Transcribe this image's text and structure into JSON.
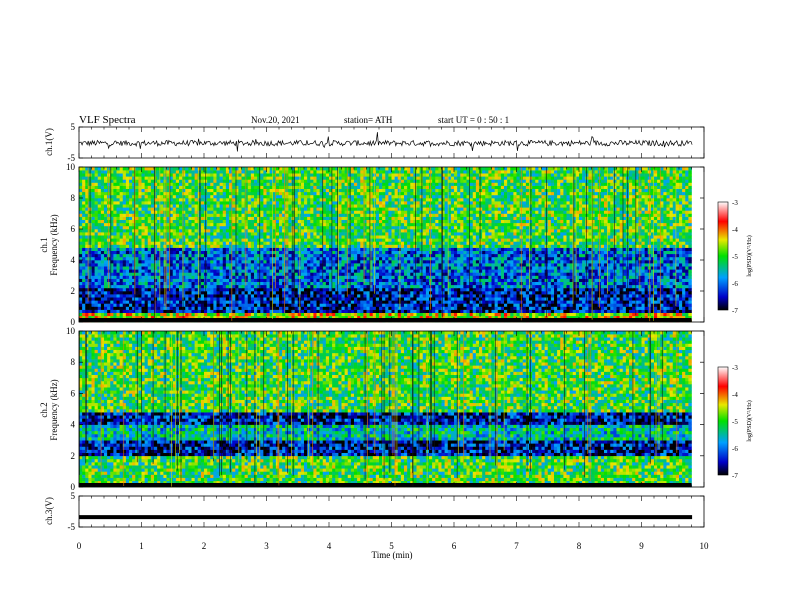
{
  "header": {
    "title": "VLF  Spectra",
    "date": "Nov.20, 2021",
    "station": "station= ATH",
    "start": "start  UT  =    0  : 50 : 1"
  },
  "colorbar": {
    "label": "log(PSD)(V²/Hz)",
    "ticks": [
      "-3",
      "-4",
      "-5",
      "-6",
      "-7"
    ]
  },
  "chart_data": [
    {
      "type": "line",
      "name": "waveform-ch1",
      "ylabel": "ch.1(V)",
      "ylim": [
        -5,
        5
      ],
      "yticks": [
        "5",
        "-5"
      ],
      "xlim": [
        0,
        10
      ],
      "approx_baseline_V": -0.2
    },
    {
      "type": "heatmap",
      "name": "spectrogram-ch1",
      "ylabel_top": "ch.1",
      "ylabel": "Frequency  (kHz)",
      "ylim": [
        0,
        10
      ],
      "yticks": [
        "0",
        "2",
        "4",
        "6",
        "8",
        "10"
      ],
      "xlim": [
        0,
        9.8
      ],
      "color_scale": "log(PSD)(V²/Hz)",
      "clim": [
        -7,
        -3
      ],
      "bands_kHz": [
        {
          "from": 0,
          "to": 0.6,
          "level": -4.5
        },
        {
          "from": 0.6,
          "to": 2.2,
          "level": -6.5
        },
        {
          "from": 2.2,
          "to": 4.8,
          "level": -6.0
        },
        {
          "from": 4.8,
          "to": 10,
          "level": -5.0
        }
      ]
    },
    {
      "type": "heatmap",
      "name": "spectrogram-ch2",
      "ylabel_top": "ch.2",
      "ylabel": "Frequency  (kHz)",
      "ylim": [
        0,
        10
      ],
      "yticks": [
        "0",
        "2",
        "4",
        "6",
        "8",
        "10"
      ],
      "xlim": [
        0,
        9.8
      ],
      "color_scale": "log(PSD)(V²/Hz)",
      "clim": [
        -7,
        -3
      ],
      "bands_kHz": [
        {
          "from": 0,
          "to": 2.0,
          "level": -5.0
        },
        {
          "from": 2.0,
          "to": 3.0,
          "level": -6.5
        },
        {
          "from": 3.0,
          "to": 4.0,
          "level": -5.5
        },
        {
          "from": 4.0,
          "to": 4.8,
          "level": -6.5
        },
        {
          "from": 4.8,
          "to": 10,
          "level": -5.0
        }
      ]
    },
    {
      "type": "line",
      "name": "waveform-ch3",
      "ylabel": "ch.3(V)",
      "ylim": [
        -5,
        5
      ],
      "yticks": [
        "5",
        "-5"
      ],
      "xlabel": "Time  (min)",
      "xlim": [
        0,
        10
      ],
      "xticks": [
        "0",
        "1",
        "2",
        "3",
        "4",
        "5",
        "6",
        "7",
        "8",
        "9",
        "10"
      ],
      "approx_baseline_V": -1.8
    }
  ]
}
